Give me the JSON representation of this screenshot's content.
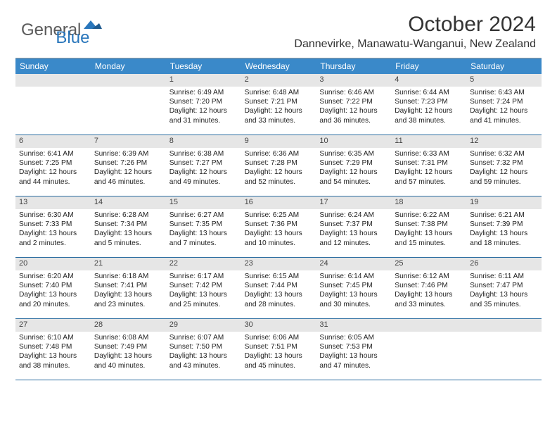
{
  "logo": {
    "part1": "General",
    "part2": "Blue"
  },
  "title": "October 2024",
  "location": "Dannevirke, Manawatu-Wanganui, New Zealand",
  "colors": {
    "header_bg": "#3a89c9",
    "header_fg": "#ffffff",
    "num_bg": "#e6e6e6",
    "rule": "#2a6ca0",
    "logo_gray": "#5a5a5a",
    "logo_blue": "#2976bb"
  },
  "day_headers": [
    "Sunday",
    "Monday",
    "Tuesday",
    "Wednesday",
    "Thursday",
    "Friday",
    "Saturday"
  ],
  "weeks": [
    [
      {
        "n": "",
        "empty": true
      },
      {
        "n": "",
        "empty": true
      },
      {
        "n": "1",
        "sr": "Sunrise: 6:49 AM",
        "ss": "Sunset: 7:20 PM",
        "d1": "Daylight: 12 hours",
        "d2": "and 31 minutes."
      },
      {
        "n": "2",
        "sr": "Sunrise: 6:48 AM",
        "ss": "Sunset: 7:21 PM",
        "d1": "Daylight: 12 hours",
        "d2": "and 33 minutes."
      },
      {
        "n": "3",
        "sr": "Sunrise: 6:46 AM",
        "ss": "Sunset: 7:22 PM",
        "d1": "Daylight: 12 hours",
        "d2": "and 36 minutes."
      },
      {
        "n": "4",
        "sr": "Sunrise: 6:44 AM",
        "ss": "Sunset: 7:23 PM",
        "d1": "Daylight: 12 hours",
        "d2": "and 38 minutes."
      },
      {
        "n": "5",
        "sr": "Sunrise: 6:43 AM",
        "ss": "Sunset: 7:24 PM",
        "d1": "Daylight: 12 hours",
        "d2": "and 41 minutes."
      }
    ],
    [
      {
        "n": "6",
        "sr": "Sunrise: 6:41 AM",
        "ss": "Sunset: 7:25 PM",
        "d1": "Daylight: 12 hours",
        "d2": "and 44 minutes."
      },
      {
        "n": "7",
        "sr": "Sunrise: 6:39 AM",
        "ss": "Sunset: 7:26 PM",
        "d1": "Daylight: 12 hours",
        "d2": "and 46 minutes."
      },
      {
        "n": "8",
        "sr": "Sunrise: 6:38 AM",
        "ss": "Sunset: 7:27 PM",
        "d1": "Daylight: 12 hours",
        "d2": "and 49 minutes."
      },
      {
        "n": "9",
        "sr": "Sunrise: 6:36 AM",
        "ss": "Sunset: 7:28 PM",
        "d1": "Daylight: 12 hours",
        "d2": "and 52 minutes."
      },
      {
        "n": "10",
        "sr": "Sunrise: 6:35 AM",
        "ss": "Sunset: 7:29 PM",
        "d1": "Daylight: 12 hours",
        "d2": "and 54 minutes."
      },
      {
        "n": "11",
        "sr": "Sunrise: 6:33 AM",
        "ss": "Sunset: 7:31 PM",
        "d1": "Daylight: 12 hours",
        "d2": "and 57 minutes."
      },
      {
        "n": "12",
        "sr": "Sunrise: 6:32 AM",
        "ss": "Sunset: 7:32 PM",
        "d1": "Daylight: 12 hours",
        "d2": "and 59 minutes."
      }
    ],
    [
      {
        "n": "13",
        "sr": "Sunrise: 6:30 AM",
        "ss": "Sunset: 7:33 PM",
        "d1": "Daylight: 13 hours",
        "d2": "and 2 minutes."
      },
      {
        "n": "14",
        "sr": "Sunrise: 6:28 AM",
        "ss": "Sunset: 7:34 PM",
        "d1": "Daylight: 13 hours",
        "d2": "and 5 minutes."
      },
      {
        "n": "15",
        "sr": "Sunrise: 6:27 AM",
        "ss": "Sunset: 7:35 PM",
        "d1": "Daylight: 13 hours",
        "d2": "and 7 minutes."
      },
      {
        "n": "16",
        "sr": "Sunrise: 6:25 AM",
        "ss": "Sunset: 7:36 PM",
        "d1": "Daylight: 13 hours",
        "d2": "and 10 minutes."
      },
      {
        "n": "17",
        "sr": "Sunrise: 6:24 AM",
        "ss": "Sunset: 7:37 PM",
        "d1": "Daylight: 13 hours",
        "d2": "and 12 minutes."
      },
      {
        "n": "18",
        "sr": "Sunrise: 6:22 AM",
        "ss": "Sunset: 7:38 PM",
        "d1": "Daylight: 13 hours",
        "d2": "and 15 minutes."
      },
      {
        "n": "19",
        "sr": "Sunrise: 6:21 AM",
        "ss": "Sunset: 7:39 PM",
        "d1": "Daylight: 13 hours",
        "d2": "and 18 minutes."
      }
    ],
    [
      {
        "n": "20",
        "sr": "Sunrise: 6:20 AM",
        "ss": "Sunset: 7:40 PM",
        "d1": "Daylight: 13 hours",
        "d2": "and 20 minutes."
      },
      {
        "n": "21",
        "sr": "Sunrise: 6:18 AM",
        "ss": "Sunset: 7:41 PM",
        "d1": "Daylight: 13 hours",
        "d2": "and 23 minutes."
      },
      {
        "n": "22",
        "sr": "Sunrise: 6:17 AM",
        "ss": "Sunset: 7:42 PM",
        "d1": "Daylight: 13 hours",
        "d2": "and 25 minutes."
      },
      {
        "n": "23",
        "sr": "Sunrise: 6:15 AM",
        "ss": "Sunset: 7:44 PM",
        "d1": "Daylight: 13 hours",
        "d2": "and 28 minutes."
      },
      {
        "n": "24",
        "sr": "Sunrise: 6:14 AM",
        "ss": "Sunset: 7:45 PM",
        "d1": "Daylight: 13 hours",
        "d2": "and 30 minutes."
      },
      {
        "n": "25",
        "sr": "Sunrise: 6:12 AM",
        "ss": "Sunset: 7:46 PM",
        "d1": "Daylight: 13 hours",
        "d2": "and 33 minutes."
      },
      {
        "n": "26",
        "sr": "Sunrise: 6:11 AM",
        "ss": "Sunset: 7:47 PM",
        "d1": "Daylight: 13 hours",
        "d2": "and 35 minutes."
      }
    ],
    [
      {
        "n": "27",
        "sr": "Sunrise: 6:10 AM",
        "ss": "Sunset: 7:48 PM",
        "d1": "Daylight: 13 hours",
        "d2": "and 38 minutes."
      },
      {
        "n": "28",
        "sr": "Sunrise: 6:08 AM",
        "ss": "Sunset: 7:49 PM",
        "d1": "Daylight: 13 hours",
        "d2": "and 40 minutes."
      },
      {
        "n": "29",
        "sr": "Sunrise: 6:07 AM",
        "ss": "Sunset: 7:50 PM",
        "d1": "Daylight: 13 hours",
        "d2": "and 43 minutes."
      },
      {
        "n": "30",
        "sr": "Sunrise: 6:06 AM",
        "ss": "Sunset: 7:51 PM",
        "d1": "Daylight: 13 hours",
        "d2": "and 45 minutes."
      },
      {
        "n": "31",
        "sr": "Sunrise: 6:05 AM",
        "ss": "Sunset: 7:53 PM",
        "d1": "Daylight: 13 hours",
        "d2": "and 47 minutes."
      },
      {
        "n": "",
        "empty": true
      },
      {
        "n": "",
        "empty": true
      }
    ]
  ]
}
